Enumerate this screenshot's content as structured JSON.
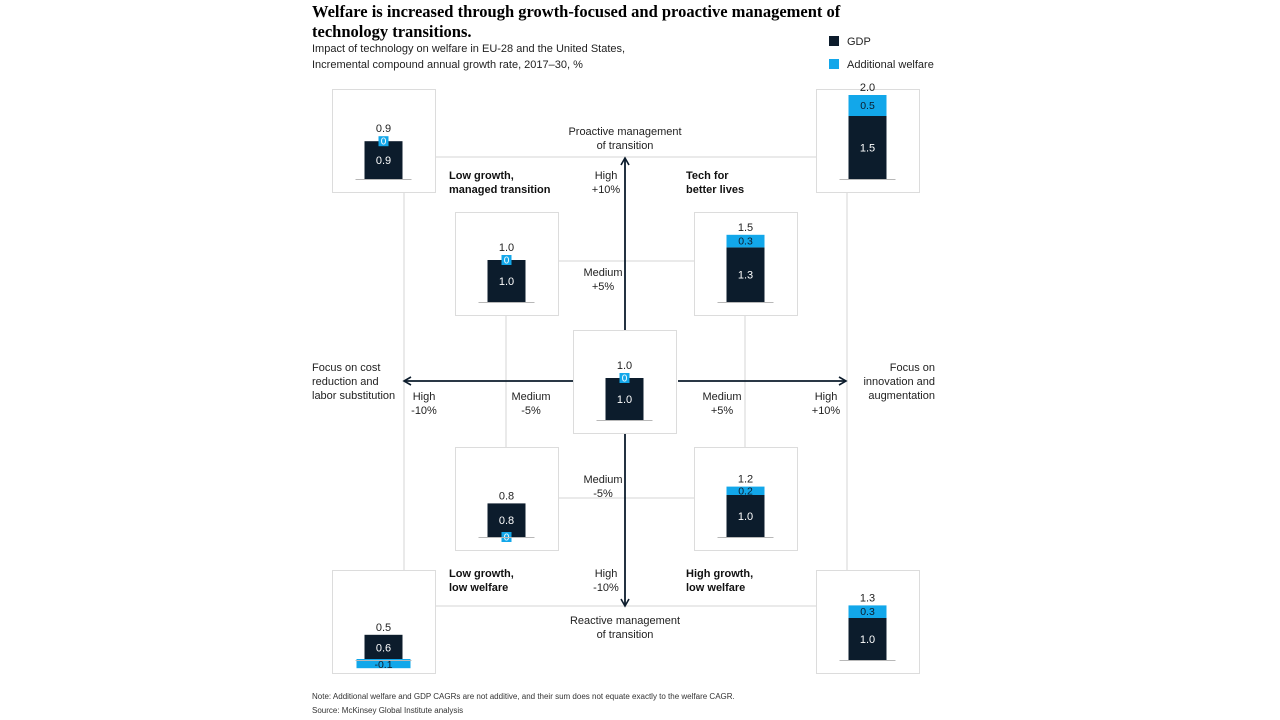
{
  "title": "Welfare is increased through growth-focused and proactive management of technology transitions.",
  "subtitle_line1": "Impact of technology on welfare in EU-28 and the United States,",
  "subtitle_line2": "Incremental compound annual growth rate, 2017–30, %",
  "legend": {
    "gdp": "GDP",
    "welfare": "Additional welfare"
  },
  "colors": {
    "gdp": "#0c1c2c",
    "welfare": "#12a7ea",
    "axis": "#0c1c2c",
    "guide": "#d6d6d6"
  },
  "axes": {
    "top_label_1": "Proactive management",
    "top_label_2": "of transition",
    "bottom_label_1": "Reactive management",
    "bottom_label_2": "of transition",
    "left_label_1": "Focus on cost",
    "left_label_2": "reduction and",
    "left_label_3": "labor substitution",
    "right_label_1": "Focus on",
    "right_label_2": "innovation and",
    "right_label_3": "augmentation",
    "v_high_top_1": "High",
    "v_high_top_2": "+10%",
    "v_med_top_1": "Medium",
    "v_med_top_2": "+5%",
    "v_med_bottom_1": "Medium",
    "v_med_bottom_2": "-5%",
    "v_high_bottom_1": "High",
    "v_high_bottom_2": "-10%",
    "h_high_left_1": "High",
    "h_high_left_2": "-10%",
    "h_med_left_1": "Medium",
    "h_med_left_2": "-5%",
    "h_med_right_1": "Medium",
    "h_med_right_2": "+5%",
    "h_high_right_1": "High",
    "h_high_right_2": "+10%"
  },
  "quadrants": {
    "top_left_1": "Low growth,",
    "top_left_2": "managed transition",
    "top_right_1": "Tech for",
    "top_right_2": "better lives",
    "bottom_left_1": "Low growth,",
    "bottom_left_2": "low welfare",
    "bottom_right_1": "High growth,",
    "bottom_right_2": "low welfare"
  },
  "chart_data": {
    "type": "bar",
    "title": "Impact of technology on welfare in EU-28 and the United States",
    "ylabel": "Incremental compound annual growth rate, 2017–30, %",
    "series_names": [
      "GDP",
      "Additional welfare"
    ],
    "scenarios": [
      {
        "name": "high-proactive-high-cost-focus",
        "total": "0.9",
        "gdp": 0.9,
        "gdp_label": "0.9",
        "welfare": 0,
        "welfare_label": "0"
      },
      {
        "name": "high-proactive-high-innovation",
        "total": "2.0",
        "gdp": 1.5,
        "gdp_label": "1.5",
        "welfare": 0.5,
        "welfare_label": "0.5"
      },
      {
        "name": "medium-proactive-medium-cost-focus",
        "total": "1.0",
        "gdp": 1.0,
        "gdp_label": "1.0",
        "welfare": 0,
        "welfare_label": "0"
      },
      {
        "name": "medium-proactive-medium-innovation",
        "total": "1.5",
        "gdp": 1.3,
        "gdp_label": "1.3",
        "welfare": 0.3,
        "welfare_label": "0.3"
      },
      {
        "name": "baseline",
        "total": "1.0",
        "gdp": 1.0,
        "gdp_label": "1.0",
        "welfare": 0,
        "welfare_label": "0"
      },
      {
        "name": "medium-reactive-medium-cost-focus",
        "total": "0.8",
        "gdp": 0.8,
        "gdp_label": "0.8",
        "welfare": 0,
        "welfare_label": "0"
      },
      {
        "name": "medium-reactive-medium-innovation",
        "total": "1.2",
        "gdp": 1.0,
        "gdp_label": "1.0",
        "welfare": 0.2,
        "welfare_label": "0.2"
      },
      {
        "name": "high-reactive-high-cost-focus",
        "total": "0.5",
        "gdp": 0.6,
        "gdp_label": "0.6",
        "welfare": -0.1,
        "welfare_label": "-0.1"
      },
      {
        "name": "high-reactive-high-innovation",
        "total": "1.3",
        "gdp": 1.0,
        "gdp_label": "1.0",
        "welfare": 0.3,
        "welfare_label": "0.3"
      }
    ]
  },
  "note": "Note: Additional welfare and GDP CAGRs are not additive, and their sum does not equate exactly to the welfare CAGR.",
  "source": "Source: McKinsey Global Institute analysis"
}
